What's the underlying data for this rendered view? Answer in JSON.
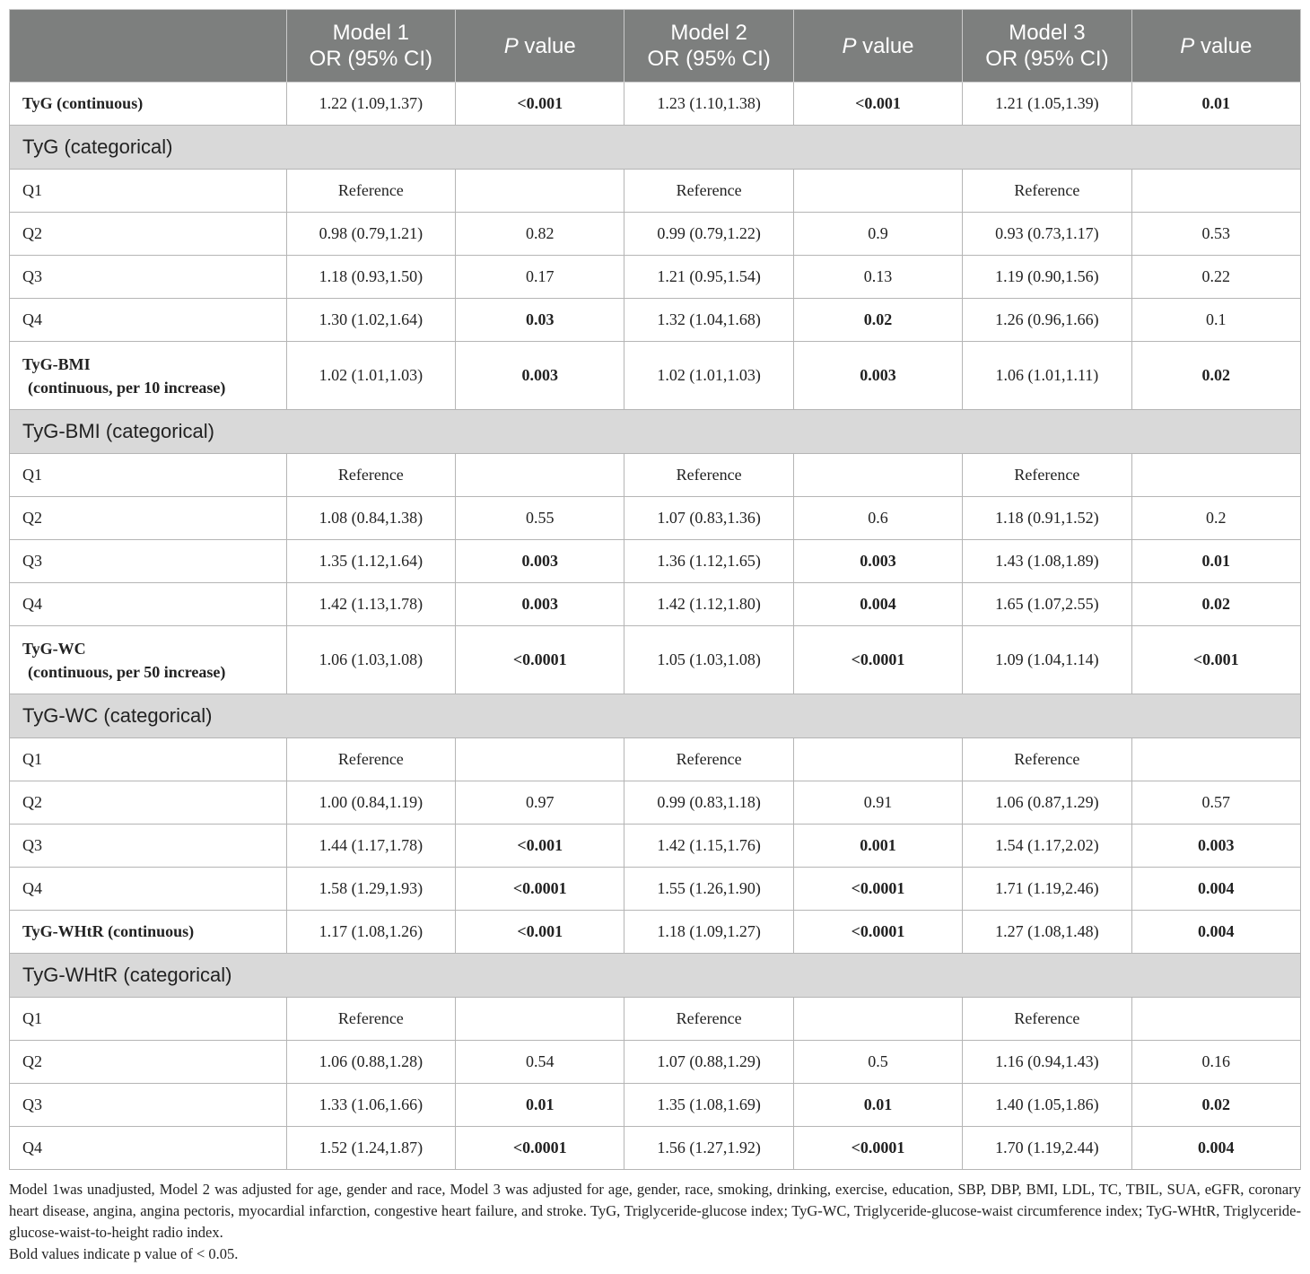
{
  "header": {
    "col0": "",
    "model1": "Model 1",
    "model2": "Model 2",
    "model3": "Model 3",
    "or_ci": "OR (95% CI)",
    "p_italic": "P",
    "p_rest": " value"
  },
  "rows": [
    {
      "type": "data",
      "label": "TyG (continuous)",
      "label_bold": true,
      "m1": "1.22 (1.09,1.37)",
      "p1": "<0.001",
      "p1_bold": true,
      "m2": "1.23 (1.10,1.38)",
      "p2": "<0.001",
      "p2_bold": true,
      "m3": "1.21 (1.05,1.39)",
      "p3": "0.01",
      "p3_bold": true
    },
    {
      "type": "section",
      "label": "TyG (categorical)"
    },
    {
      "type": "data",
      "label": "Q1",
      "m1": "Reference",
      "p1": "",
      "m2": "Reference",
      "p2": "",
      "m3": "Reference",
      "p3": ""
    },
    {
      "type": "data",
      "label": "Q2",
      "m1": "0.98 (0.79,1.21)",
      "p1": "0.82",
      "m2": "0.99 (0.79,1.22)",
      "p2": "0.9",
      "m3": "0.93 (0.73,1.17)",
      "p3": "0.53"
    },
    {
      "type": "data",
      "label": "Q3",
      "m1": "1.18 (0.93,1.50)",
      "p1": "0.17",
      "m2": "1.21 (0.95,1.54)",
      "p2": "0.13",
      "m3": "1.19 (0.90,1.56)",
      "p3": "0.22"
    },
    {
      "type": "data",
      "label": "Q4",
      "m1": "1.30 (1.02,1.64)",
      "p1": "0.03",
      "p1_bold": true,
      "m2": "1.32 (1.04,1.68)",
      "p2": "0.02",
      "p2_bold": true,
      "m3": "1.26 (0.96,1.66)",
      "p3": "0.1"
    },
    {
      "type": "data",
      "tall": true,
      "label": "TyG-BMI",
      "label2": "(continuous, per 10 increase)",
      "label_bold": true,
      "m1": "1.02 (1.01,1.03)",
      "p1": "0.003",
      "p1_bold": true,
      "m2": "1.02 (1.01,1.03)",
      "p2": "0.003",
      "p2_bold": true,
      "m3": "1.06 (1.01,1.11)",
      "p3": "0.02",
      "p3_bold": true
    },
    {
      "type": "section",
      "label": "TyG-BMI (categorical)"
    },
    {
      "type": "data",
      "label": "Q1",
      "m1": "Reference",
      "p1": "",
      "m2": "Reference",
      "p2": "",
      "m3": "Reference",
      "p3": ""
    },
    {
      "type": "data",
      "label": "Q2",
      "m1": "1.08 (0.84,1.38)",
      "p1": "0.55",
      "m2": "1.07 (0.83,1.36)",
      "p2": "0.6",
      "m3": "1.18 (0.91,1.52)",
      "p3": "0.2"
    },
    {
      "type": "data",
      "label": "Q3",
      "m1": "1.35 (1.12,1.64)",
      "p1": "0.003",
      "p1_bold": true,
      "m2": "1.36 (1.12,1.65)",
      "p2": "0.003",
      "p2_bold": true,
      "m3": "1.43 (1.08,1.89)",
      "p3": "0.01",
      "p3_bold": true
    },
    {
      "type": "data",
      "label": "Q4",
      "m1": "1.42 (1.13,1.78)",
      "p1": "0.003",
      "p1_bold": true,
      "m2": "1.42 (1.12,1.80)",
      "p2": "0.004",
      "p2_bold": true,
      "m3": "1.65 (1.07,2.55)",
      "p3": "0.02",
      "p3_bold": true
    },
    {
      "type": "data",
      "tall": true,
      "label": "TyG-WC",
      "label2": "(continuous, per 50 increase)",
      "label_bold": true,
      "m1": "1.06 (1.03,1.08)",
      "p1": "<0.0001",
      "p1_bold": true,
      "m2": "1.05 (1.03,1.08)",
      "p2": "<0.0001",
      "p2_bold": true,
      "m3": "1.09 (1.04,1.14)",
      "p3": "<0.001",
      "p3_bold": true
    },
    {
      "type": "section",
      "label": "TyG-WC (categorical)"
    },
    {
      "type": "data",
      "label": "Q1",
      "m1": "Reference",
      "p1": "",
      "m2": "Reference",
      "p2": "",
      "m3": "Reference",
      "p3": ""
    },
    {
      "type": "data",
      "label": "Q2",
      "m1": "1.00 (0.84,1.19)",
      "p1": "0.97",
      "m2": "0.99 (0.83,1.18)",
      "p2": "0.91",
      "m3": "1.06 (0.87,1.29)",
      "p3": "0.57"
    },
    {
      "type": "data",
      "label": "Q3",
      "m1": "1.44 (1.17,1.78)",
      "p1": "<0.001",
      "p1_bold": true,
      "m2": "1.42 (1.15,1.76)",
      "p2": "0.001",
      "p2_bold": true,
      "m3": "1.54 (1.17,2.02)",
      "p3": "0.003",
      "p3_bold": true
    },
    {
      "type": "data",
      "label": "Q4",
      "m1": "1.58 (1.29,1.93)",
      "p1": "<0.0001",
      "p1_bold": true,
      "m2": "1.55 (1.26,1.90)",
      "p2": "<0.0001",
      "p2_bold": true,
      "m3": "1.71 (1.19,2.46)",
      "p3": "0.004",
      "p3_bold": true
    },
    {
      "type": "data",
      "label": "TyG-WHtR (continuous)",
      "label_bold": true,
      "m1": "1.17 (1.08,1.26)",
      "p1": "<0.001",
      "p1_bold": true,
      "m2": "1.18 (1.09,1.27)",
      "p2": "<0.0001",
      "p2_bold": true,
      "m3": "1.27 (1.08,1.48)",
      "p3": "0.004",
      "p3_bold": true
    },
    {
      "type": "section",
      "label": "TyG-WHtR (categorical)"
    },
    {
      "type": "data",
      "label": "Q1",
      "m1": "Reference",
      "p1": "",
      "m2": "Reference",
      "p2": "",
      "m3": "Reference",
      "p3": ""
    },
    {
      "type": "data",
      "label": "Q2",
      "m1": "1.06 (0.88,1.28)",
      "p1": "0.54",
      "m2": "1.07 (0.88,1.29)",
      "p2": "0.5",
      "m3": "1.16 (0.94,1.43)",
      "p3": "0.16"
    },
    {
      "type": "data",
      "label": "Q3",
      "m1": "1.33 (1.06,1.66)",
      "p1": "0.01",
      "p1_bold": true,
      "m2": "1.35 (1.08,1.69)",
      "p2": "0.01",
      "p2_bold": true,
      "m3": "1.40 (1.05,1.86)",
      "p3": "0.02",
      "p3_bold": true
    },
    {
      "type": "data",
      "label": "Q4",
      "m1": "1.52 (1.24,1.87)",
      "p1": "<0.0001",
      "p1_bold": true,
      "m2": "1.56 (1.27,1.92)",
      "p2": "<0.0001",
      "p2_bold": true,
      "m3": "1.70 (1.19,2.44)",
      "p3": "0.004",
      "p3_bold": true
    }
  ],
  "footnotes": {
    "note1": "Model 1was unadjusted, Model 2 was adjusted for age, gender and race, Model 3 was adjusted for age, gender, race, smoking, drinking, exercise, education, SBP, DBP, BMI, LDL, TC, TBIL, SUA, eGFR, coronary heart disease, angina, angina pectoris, myocardial infarction, congestive heart failure, and stroke. TyG, Triglyceride-glucose index; TyG-WC, Triglyceride-glucose-waist circumference index; TyG-WHtR, Triglyceride-glucose-waist-to-height radio index.",
    "note2": "Bold values indicate p value of < 0.05."
  }
}
